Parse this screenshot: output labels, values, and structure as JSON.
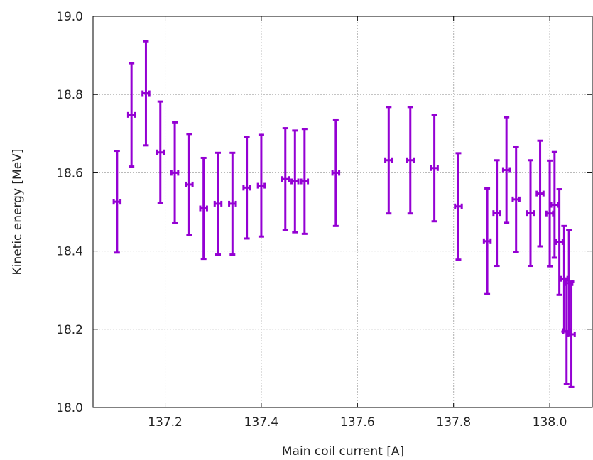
{
  "chart_data": {
    "type": "scatter",
    "xlabel": "Main coil current [A]",
    "ylabel": "Kinetic energy [MeV]",
    "xlim": [
      137.05,
      138.09
    ],
    "ylim": [
      18.0,
      19.0
    ],
    "x_ticks": [
      137.2,
      137.4,
      137.6,
      137.8,
      138.0
    ],
    "x_tick_labels": [
      "137.2",
      "137.4",
      "137.6",
      "137.8",
      "138.0"
    ],
    "y_ticks": [
      18.0,
      18.2,
      18.4,
      18.6,
      18.8,
      19.0
    ],
    "y_tick_labels": [
      "18.0",
      "18.2",
      "18.4",
      "18.6",
      "18.8",
      "19.0"
    ],
    "grid": true,
    "legend": "none",
    "color": "#9400d3",
    "points": [
      {
        "x": 137.1,
        "y": 18.526,
        "yerr": 0.13,
        "xerr": 0.007
      },
      {
        "x": 137.13,
        "y": 18.748,
        "yerr": 0.132,
        "xerr": 0.007
      },
      {
        "x": 137.16,
        "y": 18.803,
        "yerr": 0.133,
        "xerr": 0.007
      },
      {
        "x": 137.19,
        "y": 18.652,
        "yerr": 0.13,
        "xerr": 0.007
      },
      {
        "x": 137.22,
        "y": 18.6,
        "yerr": 0.129,
        "xerr": 0.007
      },
      {
        "x": 137.25,
        "y": 18.57,
        "yerr": 0.129,
        "xerr": 0.007
      },
      {
        "x": 137.28,
        "y": 18.509,
        "yerr": 0.129,
        "xerr": 0.007
      },
      {
        "x": 137.31,
        "y": 18.521,
        "yerr": 0.13,
        "xerr": 0.007
      },
      {
        "x": 137.34,
        "y": 18.521,
        "yerr": 0.13,
        "xerr": 0.007
      },
      {
        "x": 137.37,
        "y": 18.562,
        "yerr": 0.13,
        "xerr": 0.007
      },
      {
        "x": 137.4,
        "y": 18.567,
        "yerr": 0.13,
        "xerr": 0.007
      },
      {
        "x": 137.45,
        "y": 18.584,
        "yerr": 0.13,
        "xerr": 0.007
      },
      {
        "x": 137.47,
        "y": 18.578,
        "yerr": 0.13,
        "xerr": 0.007
      },
      {
        "x": 137.49,
        "y": 18.578,
        "yerr": 0.134,
        "xerr": 0.007
      },
      {
        "x": 137.555,
        "y": 18.6,
        "yerr": 0.136,
        "xerr": 0.007
      },
      {
        "x": 137.665,
        "y": 18.632,
        "yerr": 0.136,
        "xerr": 0.007
      },
      {
        "x": 137.71,
        "y": 18.632,
        "yerr": 0.136,
        "xerr": 0.007
      },
      {
        "x": 137.76,
        "y": 18.612,
        "yerr": 0.136,
        "xerr": 0.007
      },
      {
        "x": 137.81,
        "y": 18.514,
        "yerr": 0.136,
        "xerr": 0.007
      },
      {
        "x": 137.87,
        "y": 18.425,
        "yerr": 0.135,
        "xerr": 0.007
      },
      {
        "x": 137.89,
        "y": 18.497,
        "yerr": 0.135,
        "xerr": 0.007
      },
      {
        "x": 137.91,
        "y": 18.607,
        "yerr": 0.135,
        "xerr": 0.007
      },
      {
        "x": 137.93,
        "y": 18.532,
        "yerr": 0.135,
        "xerr": 0.007
      },
      {
        "x": 137.96,
        "y": 18.497,
        "yerr": 0.135,
        "xerr": 0.007
      },
      {
        "x": 137.98,
        "y": 18.547,
        "yerr": 0.135,
        "xerr": 0.007
      },
      {
        "x": 138.0,
        "y": 18.496,
        "yerr": 0.135,
        "xerr": 0.007
      },
      {
        "x": 138.01,
        "y": 18.518,
        "yerr": 0.135,
        "xerr": 0.007
      },
      {
        "x": 138.02,
        "y": 18.423,
        "yerr": 0.135,
        "xerr": 0.007
      },
      {
        "x": 138.03,
        "y": 18.329,
        "yerr": 0.135,
        "xerr": 0.007
      },
      {
        "x": 138.035,
        "y": 18.195,
        "yerr": 0.135,
        "xerr": 0.007
      },
      {
        "x": 138.04,
        "y": 18.318,
        "yerr": 0.135,
        "xerr": 0.007
      },
      {
        "x": 138.045,
        "y": 18.187,
        "yerr": 0.135,
        "xerr": 0.007
      }
    ]
  }
}
